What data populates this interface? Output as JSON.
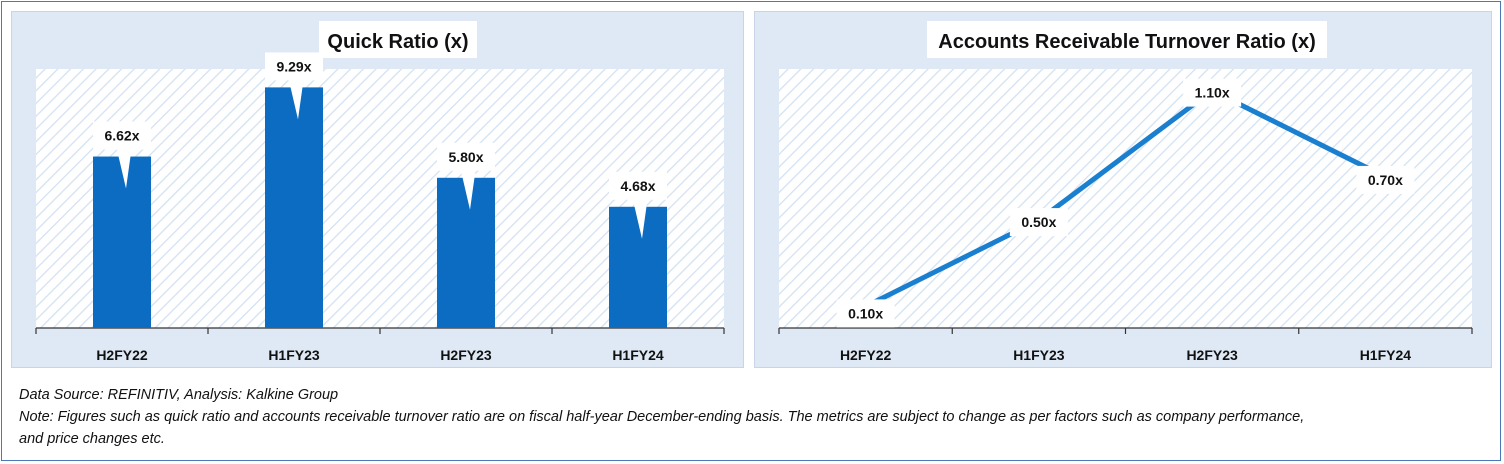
{
  "chart_data": [
    {
      "type": "bar",
      "title": "Quick Ratio (x)",
      "categories": [
        "H2FY22",
        "H1FY23",
        "H2FY23",
        "H1FY24"
      ],
      "values": [
        6.62,
        9.29,
        5.8,
        4.68
      ],
      "data_labels": [
        "6.62x",
        "9.29x",
        "5.80x",
        "4.68x"
      ],
      "ylim": [
        0,
        10
      ],
      "color": "#0b6cc2",
      "grid": false,
      "legend": "none"
    },
    {
      "type": "line",
      "title": "Accounts Receivable Turnover Ratio (x)",
      "categories": [
        "H2FY22",
        "H1FY23",
        "H2FY23",
        "H1FY24"
      ],
      "values": [
        0.1,
        0.5,
        1.1,
        0.7
      ],
      "data_labels": [
        "0.10x",
        "0.50x",
        "1.10x",
        "0.70x"
      ],
      "ylim": [
        0,
        1.2
      ],
      "color": "#1b7fd0",
      "grid": false,
      "legend": "none"
    }
  ],
  "footer": {
    "source": "Data Source: REFINITIV, Analysis: Kalkine Group",
    "note_line1": "Note: Figures such as quick ratio and accounts receivable turnover ratio are on fiscal half-year December-ending basis. The metrics are subject to change as per factors such as company performance,",
    "note_line2": "and price changes etc."
  }
}
